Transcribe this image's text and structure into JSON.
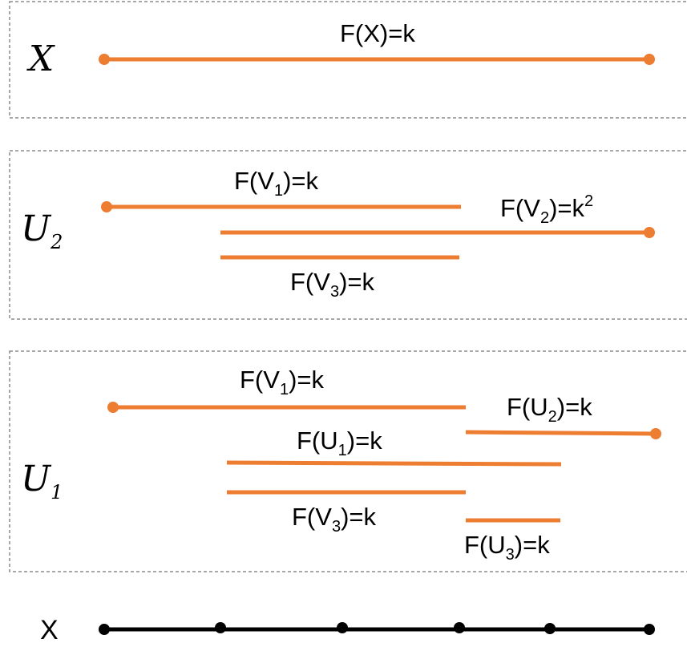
{
  "colors": {
    "segment": "#ED7D31",
    "axis": "#000000",
    "panel_border": "#8c8c8c"
  },
  "panels": {
    "top": {
      "name": "X",
      "seg_x": "F(X)=k"
    },
    "middle": {
      "name": "U",
      "name_sub": "2",
      "seg_v1": {
        "pre": "F(V",
        "sub": "1",
        "post": ")=k"
      },
      "seg_v2": {
        "pre": "F(V",
        "sub": "2",
        "post": ")=k",
        "sup": "2"
      },
      "seg_v3": {
        "pre": "F(V",
        "sub": "3",
        "post": ")=k"
      }
    },
    "bottom": {
      "name": "U",
      "name_sub": "1",
      "seg_v1": {
        "pre": "F(V",
        "sub": "1",
        "post": ")=k"
      },
      "seg_u2": {
        "pre": "F(U",
        "sub": "2",
        "post": ")=k"
      },
      "seg_u1": {
        "pre": "F(U",
        "sub": "1",
        "post": ")=k"
      },
      "seg_v3": {
        "pre": "F(V",
        "sub": "3",
        "post": ")=k"
      },
      "seg_u3": {
        "pre": "F(U",
        "sub": "3",
        "post": ")=k"
      }
    }
  },
  "axis": {
    "label": "X"
  }
}
